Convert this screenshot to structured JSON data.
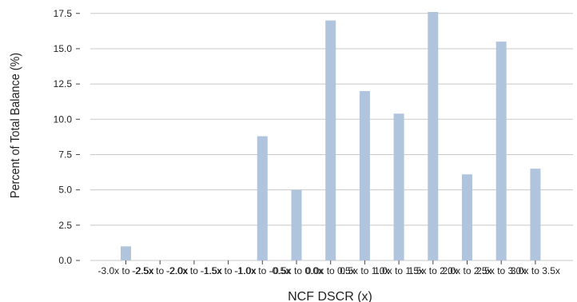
{
  "chart_data": {
    "type": "bar",
    "title": "",
    "xlabel": "NCF DSCR (x)",
    "ylabel": "Percent of Total Balance (%)",
    "categories": [
      "-3.0x to -2.5x",
      "-2.5x to -2.0x",
      "-2.0x to -1.5x",
      "-1.5x to -1.0x",
      "-1.0x to -0.5x",
      "-0.5x to 0.0x",
      "0.0x to 0.5x",
      "0.5x to 1.0x",
      "1.0x to 1.5x",
      "1.5x to 2.0x",
      "2.0x to 2.5x",
      "2.5x to 3.0x",
      "3.0x to 3.5x"
    ],
    "tick_labels": [
      "-3.0x to -2.5x",
      "-2.5x to -2.0x",
      "-2.0x to -1.5x",
      "-1.5x to -1.0x",
      "-1.0x to -0.5x",
      "-0.5x to 0.0x",
      "0.0x to 0.5x",
      "0.5x to 1.0x",
      "1.0x to 1.5x",
      "1.5x to 2.0x",
      "2.0x to 2.5x",
      "2.5x to 3.0x",
      "3.0x to 3.5x"
    ],
    "values": [
      1.0,
      0,
      0,
      0,
      8.8,
      5.0,
      17.0,
      12.0,
      10.4,
      17.6,
      6.1,
      15.5,
      6.5
    ],
    "y_ticks": [
      0.0,
      2.5,
      5.0,
      7.5,
      10.0,
      12.5,
      15.0,
      17.5
    ],
    "y_tick_labels": [
      "0.0",
      "2.5",
      "5.0",
      "7.5",
      "10.0",
      "12.5",
      "15.0",
      "17.5"
    ],
    "ylim": [
      0,
      17.6
    ],
    "grid": "horizontal",
    "legend": "none",
    "colors": {
      "bar": "#b0c4de",
      "grid": "#c8c8c8",
      "text": "#222222"
    }
  }
}
